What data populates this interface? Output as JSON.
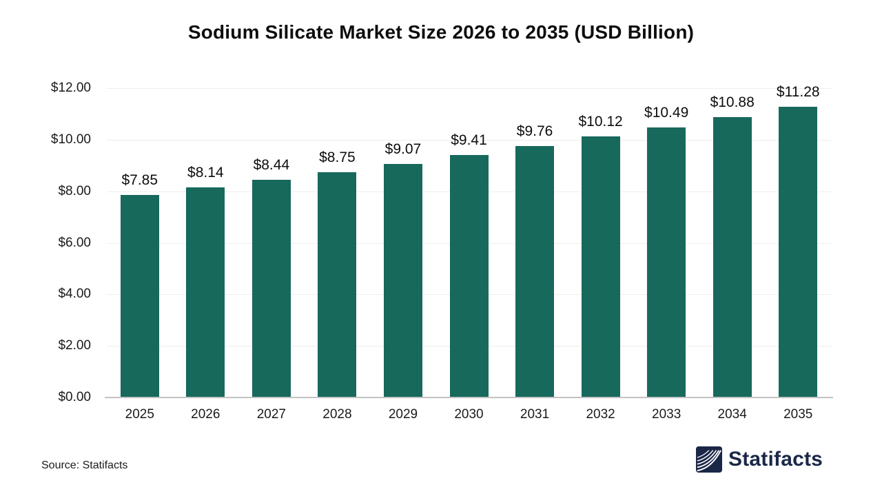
{
  "title": "Sodium Silicate Market Size 2026 to 2035 (USD Billion)",
  "source_note": "Source: Statifacts",
  "brand": {
    "name": "Statifacts"
  },
  "colors": {
    "bar": "#17695c",
    "grid": "#ededed",
    "axis_line": "#c2c2c2",
    "text": "#111111",
    "brand_navy": "#1b2747"
  },
  "chart_data": {
    "type": "bar",
    "title": "Sodium Silicate Market Size 2026 to 2035 (USD Billion)",
    "categories": [
      "2025",
      "2026",
      "2027",
      "2028",
      "2029",
      "2030",
      "2031",
      "2032",
      "2033",
      "2034",
      "2035"
    ],
    "values": [
      7.85,
      8.14,
      8.44,
      8.75,
      9.07,
      9.41,
      9.76,
      10.12,
      10.49,
      10.88,
      11.28
    ],
    "value_labels": [
      "$7.85",
      "$8.14",
      "$8.44",
      "$8.75",
      "$9.07",
      "$9.41",
      "$9.76",
      "$10.12",
      "$10.49",
      "$10.88",
      "$11.28"
    ],
    "xlabel": "",
    "ylabel": "",
    "ylim": [
      0,
      12
    ],
    "ytick_step": 2,
    "ytick_labels": [
      "$0.00",
      "$2.00",
      "$4.00",
      "$6.00",
      "$8.00",
      "$10.00",
      "$12.00"
    ],
    "grid": true,
    "legend": false
  }
}
